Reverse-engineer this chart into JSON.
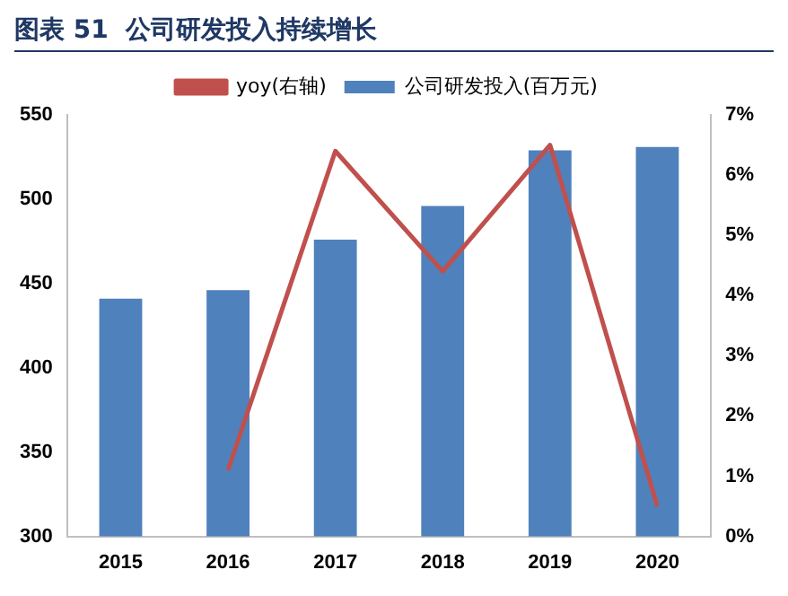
{
  "chart_data": {
    "type": "bar",
    "title": "图表 51  公司研发投入持续增长",
    "categories": [
      "2015",
      "2016",
      "2017",
      "2018",
      "2019",
      "2020"
    ],
    "series": [
      {
        "name": "公司研发投入(百万元)",
        "color": "#4f81bd",
        "values": [
          441,
          446,
          476,
          496,
          529,
          531
        ]
      },
      {
        "name": "yoy(右轴)",
        "type": "line",
        "axis": "y2",
        "color": "#c0504d",
        "values": [
          null,
          1.1,
          6.4,
          4.4,
          6.5,
          0.5
        ]
      }
    ],
    "ylim": [
      300,
      550
    ],
    "yticks": [
      300,
      350,
      400,
      450,
      500,
      550
    ],
    "y2lim": [
      0,
      7
    ],
    "y2ticks": [
      {
        "value": 0,
        "label": "0%"
      },
      {
        "value": 1,
        "label": "1%"
      },
      {
        "value": 2,
        "label": "2%"
      },
      {
        "value": 3,
        "label": "3%"
      },
      {
        "value": 4,
        "label": "4%"
      },
      {
        "value": 5,
        "label": "5%"
      },
      {
        "value": 6,
        "label": "6%"
      },
      {
        "value": 7,
        "label": "7%"
      }
    ],
    "grid": false,
    "legend": "top",
    "marker": "none",
    "line_style": "solid"
  }
}
